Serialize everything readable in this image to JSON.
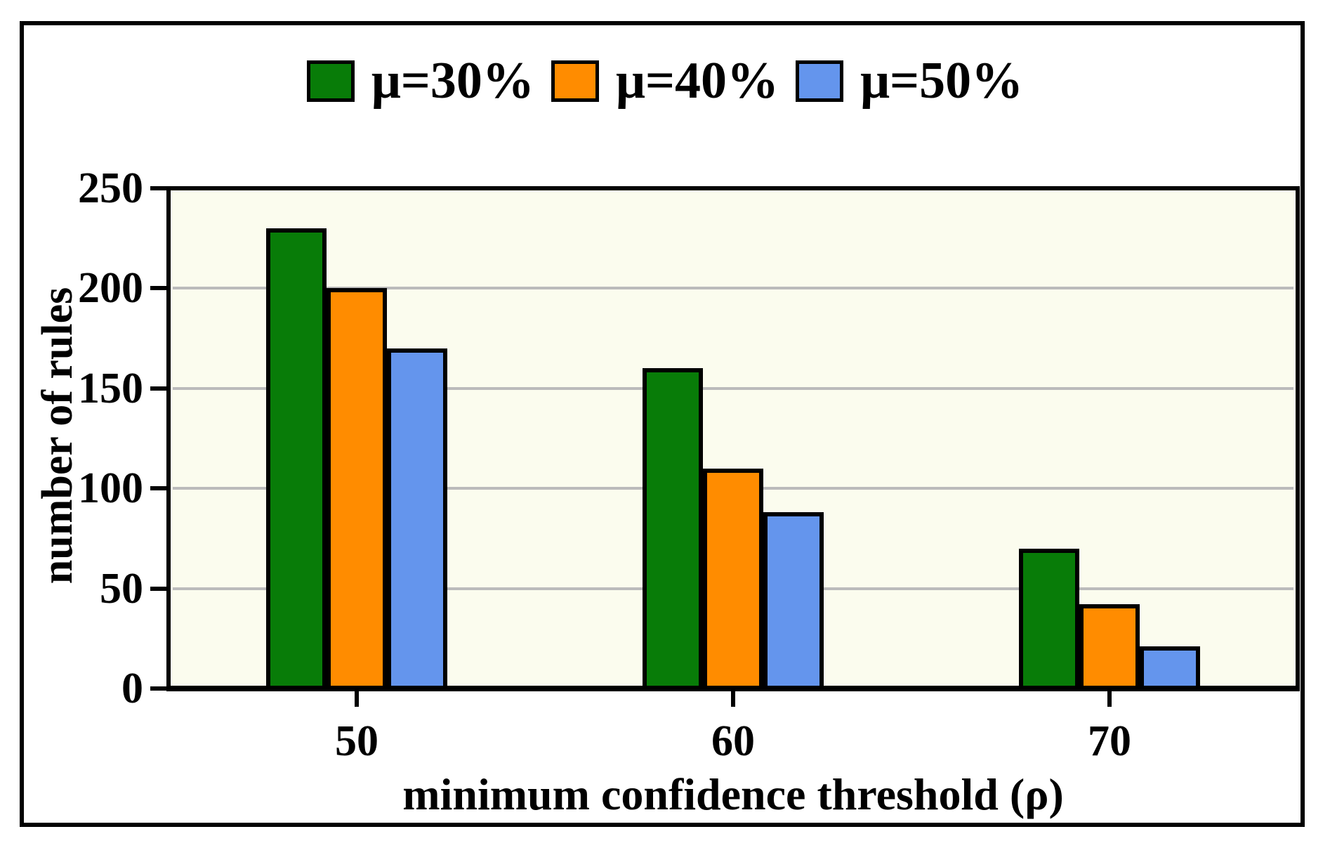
{
  "chart_data": {
    "type": "bar",
    "categories": [
      "50",
      "60",
      "70"
    ],
    "series": [
      {
        "name": "μ=30%",
        "color": "#087C08",
        "values": [
          230,
          160,
          70
        ]
      },
      {
        "name": "μ=40%",
        "color": "#FF8C00",
        "values": [
          200,
          110,
          42
        ]
      },
      {
        "name": "μ=50%",
        "color": "#6495ED",
        "values": [
          170,
          88,
          21
        ]
      }
    ],
    "title": "",
    "xlabel": "minimum confidence threshold (ρ)",
    "ylabel": "number of rules",
    "ylim": [
      0,
      250
    ],
    "yticks": [
      0,
      50,
      100,
      150,
      200,
      250
    ],
    "grid": "horizontal",
    "gridline_values": [
      50,
      100,
      150,
      200
    ],
    "legend_position": "top-center",
    "colors": {
      "plot_background": "#FBFCEE",
      "gridline": "#BBBBBB",
      "axis": "#000000",
      "text": "#000000"
    }
  }
}
